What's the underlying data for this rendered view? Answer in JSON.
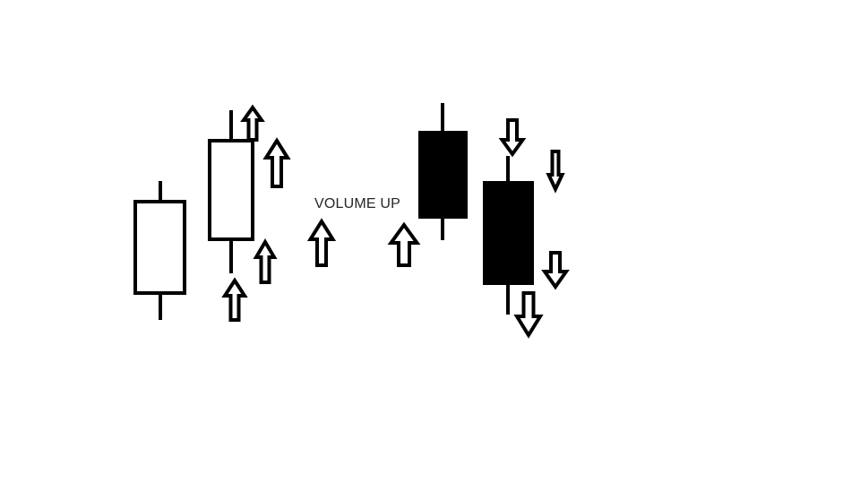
{
  "diagram": {
    "caption": "VOLUME UP",
    "colors": {
      "stroke": "#000000",
      "background": "#ffffff",
      "text": "#262626"
    },
    "candles": [
      {
        "name": "candle-1",
        "fill": "hollow"
      },
      {
        "name": "candle-2",
        "fill": "hollow"
      },
      {
        "name": "candle-3",
        "fill": "filled"
      },
      {
        "name": "candle-4",
        "fill": "filled"
      }
    ],
    "arrows": [
      {
        "name": "up-arrow-1",
        "direction": "up",
        "icon": "arrow-up-icon"
      },
      {
        "name": "up-arrow-2",
        "direction": "up",
        "icon": "arrow-up-icon"
      },
      {
        "name": "up-arrow-3",
        "direction": "up",
        "icon": "arrow-up-icon"
      },
      {
        "name": "up-arrow-4",
        "direction": "up",
        "icon": "arrow-up-icon"
      },
      {
        "name": "up-arrow-5",
        "direction": "up",
        "icon": "arrow-up-icon"
      },
      {
        "name": "up-arrow-6",
        "direction": "up",
        "icon": "arrow-up-icon"
      },
      {
        "name": "down-arrow-1",
        "direction": "down",
        "icon": "arrow-down-icon"
      },
      {
        "name": "down-arrow-2",
        "direction": "down",
        "icon": "arrow-down-icon"
      },
      {
        "name": "down-arrow-3",
        "direction": "down",
        "icon": "arrow-down-icon"
      },
      {
        "name": "down-arrow-4",
        "direction": "down",
        "icon": "arrow-down-icon"
      }
    ]
  }
}
